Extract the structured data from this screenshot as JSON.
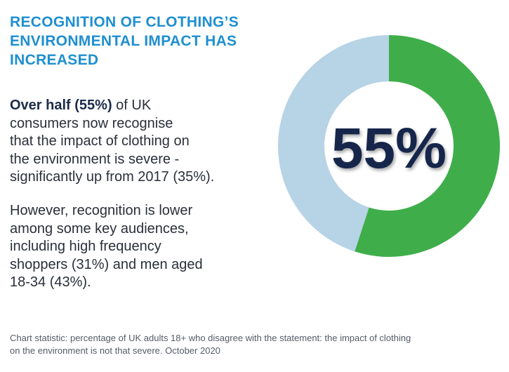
{
  "headline": {
    "lines": [
      "RECOGNITION OF CLOTHING’S",
      "ENVIRONMENTAL IMPACT HAS",
      "INCREASED"
    ]
  },
  "paragraph1": {
    "bold_prefix": "Over half (55%)",
    "line1_rest": " of UK",
    "lines": [
      "consumers now recognise",
      "that the impact of clothing on",
      "the environment is severe -",
      "significantly up from 2017 (35%)."
    ]
  },
  "paragraph2": {
    "lines": [
      "However, recognition is lower",
      "among some key audiences,",
      "including high frequency",
      "shoppers (31%) and men aged",
      "18-34 (43%)."
    ]
  },
  "footnote": {
    "lines": [
      "Chart statistic: percentage of UK adults 18+ who disagree with the statement: the impact of clothing",
      "on the environment is not that severe. October 2020"
    ]
  },
  "colors": {
    "headline": "#1e8fd0",
    "agree_slice": "#3fae4a",
    "remainder_slice": "#b7d3e6",
    "center_text": "#12284c",
    "body_text": "#2a2f3a"
  },
  "chart_data": {
    "type": "pie",
    "variant": "donut",
    "slices": [
      {
        "value": 55,
        "color": "#3fae4a"
      },
      {
        "value": 45,
        "color": "#b7d3e6"
      }
    ],
    "center_label": "55%",
    "start": "top",
    "direction": "clockwise",
    "legend": "none"
  }
}
